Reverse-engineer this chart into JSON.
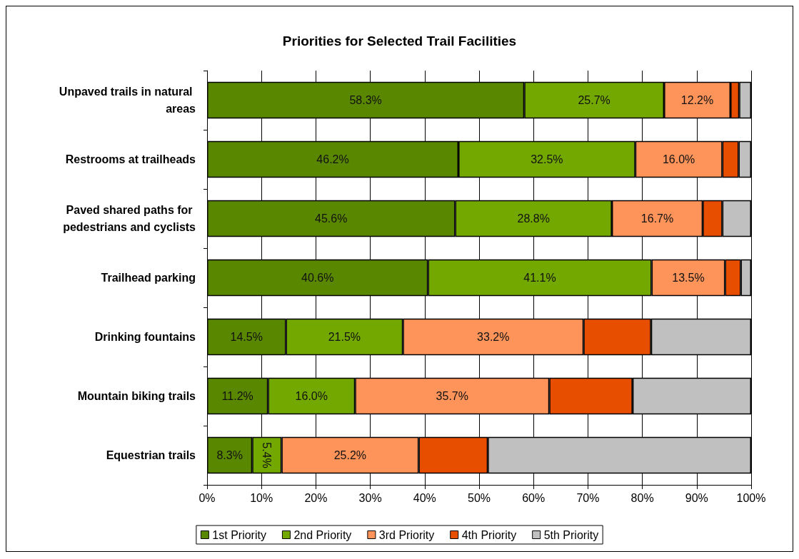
{
  "chart_data": {
    "type": "bar",
    "title": "Priorities for Selected Trail Facilities",
    "orientation": "horizontal",
    "stacked": true,
    "categories": [
      "Unpaved trails in natural areas",
      "Restrooms at trailheads",
      "Paved shared paths for pedestrians and cyclists",
      "Trailhead parking",
      "Drinking fountains",
      "Mountain biking trails",
      "Equestrian trails"
    ],
    "series": [
      {
        "name": "1st Priority",
        "color": "#5a8700",
        "values": [
          58.3,
          46.2,
          45.6,
          40.6,
          14.5,
          11.2,
          8.3
        ],
        "value_labels": [
          "58.3%",
          "46.2%",
          "45.6%",
          "40.6%",
          "14.5%",
          "11.2%",
          "8.3%"
        ]
      },
      {
        "name": "2nd Priority",
        "color": "#73a800",
        "values": [
          25.7,
          32.5,
          28.8,
          41.1,
          21.5,
          16.0,
          5.4
        ],
        "value_labels": [
          "25.7%",
          "32.5%",
          "28.8%",
          "41.1%",
          "21.5%",
          "16.0%",
          "5.4%"
        ]
      },
      {
        "name": "3rd Priority",
        "color": "#ff945a",
        "values": [
          12.2,
          16.0,
          16.7,
          13.5,
          33.2,
          35.7,
          25.2
        ],
        "value_labels": [
          "12.2%",
          "16.0%",
          "16.7%",
          "13.5%",
          "33.2%",
          "35.7%",
          "25.2%"
        ]
      },
      {
        "name": "4th Priority",
        "color": "#e84e00",
        "values": [
          1.6,
          3.0,
          3.6,
          2.9,
          12.4,
          15.3,
          12.7
        ]
      },
      {
        "name": "5th Priority",
        "color": "#c0c0c0",
        "values": [
          2.2,
          2.3,
          5.3,
          1.9,
          18.4,
          21.8,
          48.4
        ]
      }
    ],
    "xlim": [
      0,
      100
    ],
    "xticks": [
      {
        "value": 0,
        "label": "0%"
      },
      {
        "value": 10,
        "label": "10%"
      },
      {
        "value": 20,
        "label": "20%"
      },
      {
        "value": 30,
        "label": "30%"
      },
      {
        "value": 40,
        "label": "40%"
      },
      {
        "value": 50,
        "label": "50%"
      },
      {
        "value": 60,
        "label": "60%"
      },
      {
        "value": 70,
        "label": "70%"
      },
      {
        "value": 80,
        "label": "80%"
      },
      {
        "value": 90,
        "label": "90%"
      },
      {
        "value": 100,
        "label": "100%"
      }
    ],
    "grid": "x",
    "legend": "bottom"
  }
}
